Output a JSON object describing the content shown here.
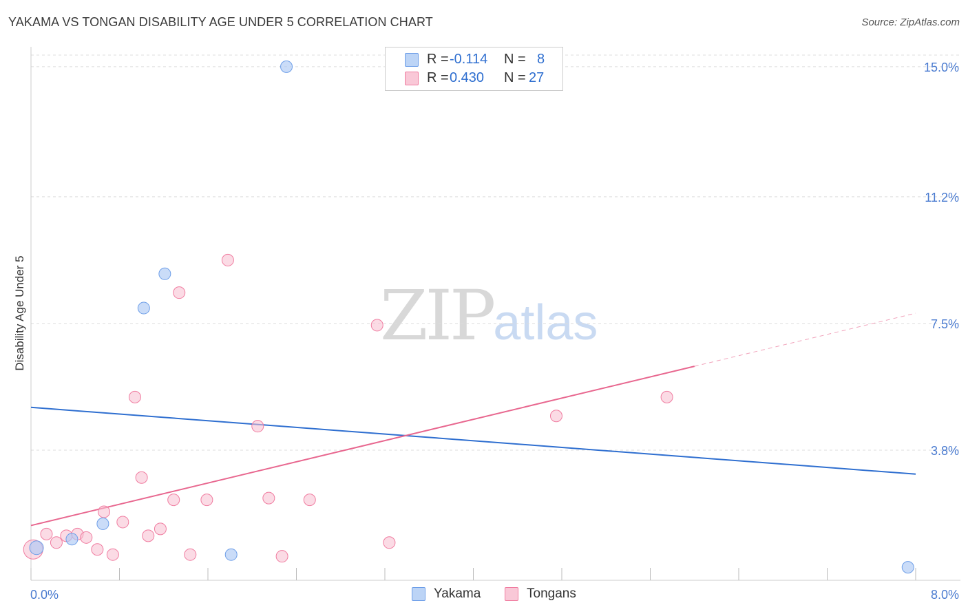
{
  "title": "YAKAMA VS TONGAN DISABILITY AGE UNDER 5 CORRELATION CHART",
  "source": "Source: ZipAtlas.com",
  "watermark": {
    "zip": "ZIP",
    "atlas": "atlas"
  },
  "legend": {
    "rows": [
      {
        "label": "R =",
        "r": "-0.114",
        "n_label": "N =",
        "n": "8"
      },
      {
        "label": "R =",
        "r": "0.430",
        "n_label": "N =",
        "n": "27"
      }
    ]
  },
  "bottom_legend": [
    "Yakama",
    "Tongans"
  ],
  "chart_data": {
    "type": "scatter",
    "title": "YAKAMA VS TONGAN DISABILITY AGE UNDER 5 CORRELATION CHART",
    "xlabel": "",
    "ylabel": "Disability Age Under 5",
    "xlim": [
      0.0,
      8.0
    ],
    "ylim": [
      0.0,
      15.5
    ],
    "x_tick_labels": [
      "0.0%",
      "8.0%"
    ],
    "y_ticks": [
      3.8,
      7.5,
      11.2,
      15.0
    ],
    "y_tick_labels": [
      "3.8%",
      "7.5%",
      "11.2%",
      "15.0%"
    ],
    "colors": {
      "yakama": "#6d9ee8",
      "tongans": "#f07ca0",
      "yakama_line": "#2f6fd0",
      "tongans_line": "#e8678f"
    },
    "series": [
      {
        "name": "Yakama",
        "points": [
          [
            0.05,
            0.95
          ],
          [
            0.37,
            1.2
          ],
          [
            0.65,
            1.65
          ],
          [
            1.02,
            7.95
          ],
          [
            1.21,
            8.95
          ],
          [
            1.81,
            0.75
          ],
          [
            2.31,
            15.0
          ],
          [
            7.93,
            0.38
          ]
        ],
        "trend": {
          "x": [
            0.0,
            8.0
          ],
          "y": [
            5.05,
            3.1
          ]
        }
      },
      {
        "name": "Tongans",
        "points": [
          [
            0.02,
            0.9
          ],
          [
            0.14,
            1.35
          ],
          [
            0.23,
            1.1
          ],
          [
            0.32,
            1.3
          ],
          [
            0.42,
            1.35
          ],
          [
            0.5,
            1.25
          ],
          [
            0.6,
            0.9
          ],
          [
            0.66,
            2.0
          ],
          [
            0.74,
            0.75
          ],
          [
            0.83,
            1.7
          ],
          [
            0.94,
            5.35
          ],
          [
            1.0,
            3.0
          ],
          [
            1.06,
            1.3
          ],
          [
            1.17,
            1.5
          ],
          [
            1.29,
            2.35
          ],
          [
            1.44,
            0.75
          ],
          [
            1.59,
            2.35
          ],
          [
            1.78,
            9.35
          ],
          [
            2.05,
            4.5
          ],
          [
            2.15,
            2.4
          ],
          [
            2.27,
            0.7
          ],
          [
            2.52,
            2.35
          ],
          [
            3.13,
            7.45
          ],
          [
            3.24,
            1.1
          ],
          [
            4.75,
            4.8
          ],
          [
            5.75,
            5.35
          ],
          [
            1.34,
            8.4
          ]
        ],
        "trend": {
          "x": [
            0.0,
            6.0
          ],
          "y": [
            1.6,
            6.25
          ]
        },
        "trend_ext": {
          "x": [
            6.0,
            8.0
          ],
          "y": [
            6.25,
            7.8
          ]
        }
      }
    ]
  }
}
